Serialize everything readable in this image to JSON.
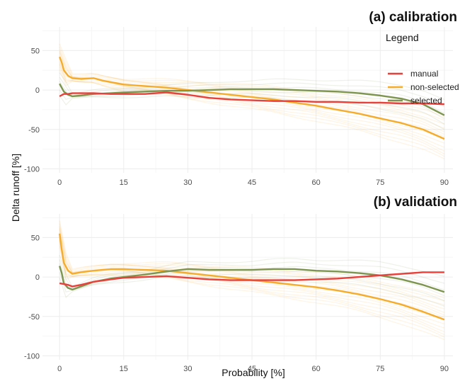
{
  "colors": {
    "manual": "#e8403a",
    "non_selected": "#f5ac2c",
    "selected": "#7e9550",
    "grid_major": "#ececec",
    "grid_minor": "#f6f6f6"
  },
  "legend": {
    "title": "Legend",
    "entries": [
      "manual",
      "non-selected",
      "selected"
    ],
    "placement": "top-right of panel (a)"
  },
  "axes": {
    "xlabel": "Probability [%]",
    "ylabel": "Delta runoff [%]",
    "xlim": [
      -4,
      92
    ],
    "ylim": [
      -105,
      80
    ],
    "xticks": [
      "0",
      "15",
      "30",
      "45",
      "60",
      "75",
      "90"
    ],
    "yticks": [
      "50",
      "0",
      "-50",
      "-100"
    ],
    "grid": true
  },
  "chart_data": [
    {
      "type": "line",
      "title": "(a) calibration",
      "xlabel": "",
      "ylabel": "Delta runoff [%]",
      "xlim": [
        -4,
        92
      ],
      "ylim": [
        -105,
        80
      ],
      "series": [
        {
          "name": "manual",
          "color": "#e8403a",
          "x": [
            0,
            1,
            2,
            3,
            5,
            8,
            12,
            15,
            20,
            25,
            30,
            35,
            40,
            45,
            50,
            55,
            60,
            65,
            70,
            75,
            80,
            85,
            90
          ],
          "y": [
            -8,
            -5,
            -5,
            -4,
            -4,
            -4,
            -5,
            -5,
            -5,
            -3,
            -6,
            -10,
            -12,
            -13,
            -14,
            -14,
            -15,
            -15,
            -16,
            -16,
            -17,
            -17,
            -18
          ]
        },
        {
          "name": "non-selected",
          "color": "#f5ac2c",
          "x": [
            0,
            0.5,
            1,
            2,
            3,
            5,
            8,
            10,
            12,
            15,
            20,
            25,
            30,
            35,
            40,
            45,
            50,
            55,
            60,
            65,
            70,
            75,
            80,
            85,
            90
          ],
          "y": [
            42,
            35,
            25,
            18,
            15,
            14,
            15,
            12,
            10,
            7,
            5,
            3,
            0,
            -3,
            -6,
            -9,
            -12,
            -16,
            -20,
            -25,
            -30,
            -36,
            -42,
            -50,
            -62
          ]
        },
        {
          "name": "selected",
          "color": "#7e9550",
          "x": [
            0,
            0.5,
            1,
            2,
            3,
            5,
            8,
            12,
            15,
            20,
            25,
            30,
            35,
            40,
            45,
            50,
            55,
            60,
            65,
            70,
            75,
            80,
            85,
            90
          ],
          "y": [
            8,
            3,
            -2,
            -6,
            -8,
            -7,
            -5,
            -4,
            -3,
            -2,
            -1,
            -1,
            0,
            1,
            1,
            1,
            0,
            -1,
            -2,
            -4,
            -7,
            -11,
            -18,
            -32
          ]
        }
      ]
    },
    {
      "type": "line",
      "title": "(b) validation",
      "xlabel": "Probability [%]",
      "ylabel": "Delta runoff [%]",
      "xlim": [
        -4,
        92
      ],
      "ylim": [
        -105,
        80
      ],
      "series": [
        {
          "name": "manual",
          "color": "#e8403a",
          "x": [
            0,
            1,
            2,
            3,
            5,
            8,
            12,
            15,
            20,
            25,
            30,
            35,
            40,
            45,
            50,
            55,
            60,
            65,
            70,
            75,
            80,
            85,
            90
          ],
          "y": [
            -8,
            -9,
            -10,
            -12,
            -10,
            -6,
            -3,
            -1,
            0,
            1,
            -1,
            -3,
            -4,
            -4,
            -4,
            -4,
            -3,
            -2,
            0,
            2,
            4,
            6,
            6
          ]
        },
        {
          "name": "non-selected",
          "color": "#f5ac2c",
          "x": [
            0,
            0.5,
            1,
            2,
            3,
            5,
            8,
            10,
            12,
            15,
            20,
            25,
            30,
            35,
            40,
            45,
            50,
            55,
            60,
            65,
            70,
            75,
            80,
            85,
            90
          ],
          "y": [
            55,
            35,
            18,
            8,
            4,
            6,
            8,
            9,
            10,
            10,
            9,
            8,
            5,
            2,
            -1,
            -4,
            -7,
            -10,
            -13,
            -17,
            -22,
            -28,
            -35,
            -44,
            -54
          ]
        },
        {
          "name": "selected",
          "color": "#7e9550",
          "x": [
            0,
            0.5,
            1,
            2,
            3,
            5,
            8,
            12,
            15,
            20,
            25,
            30,
            35,
            40,
            45,
            50,
            55,
            60,
            65,
            70,
            75,
            80,
            85,
            90
          ],
          "y": [
            14,
            5,
            -8,
            -14,
            -16,
            -12,
            -6,
            -2,
            0,
            3,
            7,
            10,
            9,
            9,
            9,
            10,
            10,
            8,
            7,
            5,
            2,
            -3,
            -10,
            -19
          ]
        }
      ]
    }
  ]
}
